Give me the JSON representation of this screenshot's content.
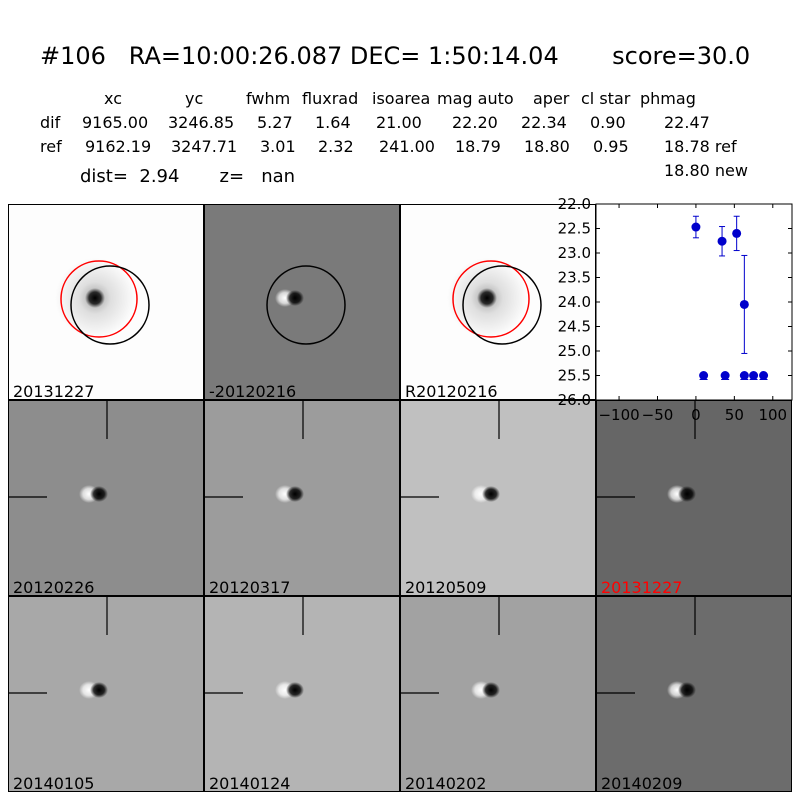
{
  "header": {
    "title": "#106   RA=10:00:26.087 DEC= 1:50:14.04       score=30.0",
    "columns": [
      "xc",
      "yc",
      "fwhm",
      "fluxrad",
      "isoarea",
      "mag auto",
      "aper",
      "cl star",
      "phmag"
    ],
    "rows": [
      {
        "label": "dif",
        "values": [
          "9165.00",
          "3246.85",
          "5.27",
          "1.64",
          "21.00",
          "22.20",
          "22.34",
          "0.90",
          "22.47"
        ]
      },
      {
        "label": "ref",
        "values": [
          "9162.19",
          "3247.71",
          "3.01",
          "2.32",
          "241.00",
          "18.79",
          "18.80",
          "0.95",
          "18.78 ref"
        ]
      }
    ],
    "extra": "18.80 new",
    "dist": "dist=  2.94       z=   nan"
  },
  "top_panels": [
    {
      "label": "20131227",
      "color": "#000000"
    },
    {
      "label": "-20120216",
      "color": "#000000"
    },
    {
      "label": "R20120216",
      "color": "#000000"
    }
  ],
  "grid_panels": [
    {
      "label": "20120226",
      "color": "#000000"
    },
    {
      "label": "20120317",
      "color": "#000000"
    },
    {
      "label": "20120509",
      "color": "#000000"
    },
    {
      "label": "20131227",
      "color": "#ff0000"
    },
    {
      "label": "20140105",
      "color": "#000000"
    },
    {
      "label": "20140124",
      "color": "#000000"
    },
    {
      "label": "20140202",
      "color": "#000000"
    },
    {
      "label": "20140209",
      "color": "#000000"
    }
  ],
  "chart_data": {
    "type": "scatter",
    "xlim": [
      -130,
      125
    ],
    "ylim": [
      26.0,
      22.0
    ],
    "y_inverted": true,
    "xticks": [
      -100,
      -50,
      0,
      50,
      100
    ],
    "xtick_labels": [
      "−100",
      "−50",
      "0",
      "50",
      "100"
    ],
    "yticks": [
      22.0,
      22.5,
      23.0,
      23.5,
      24.0,
      24.5,
      25.0,
      25.5,
      26.0
    ],
    "ytick_labels": [
      "22.0",
      "22.5",
      "23.0",
      "23.5",
      "24.0",
      "24.5",
      "25.0",
      "25.5",
      "26.0"
    ],
    "color": "#0000cc",
    "points": [
      {
        "x": 0,
        "y": 22.47,
        "err": 0.22
      },
      {
        "x": 34,
        "y": 22.76,
        "err": 0.3
      },
      {
        "x": 53,
        "y": 22.6,
        "err": 0.35
      },
      {
        "x": 63,
        "y": 24.05,
        "err": 1.0
      }
    ],
    "limits": [
      {
        "x": 10,
        "y": 25.5
      },
      {
        "x": 38,
        "y": 25.5
      },
      {
        "x": 63,
        "y": 25.5
      },
      {
        "x": 75,
        "y": 25.5
      },
      {
        "x": 88,
        "y": 25.5
      }
    ]
  }
}
